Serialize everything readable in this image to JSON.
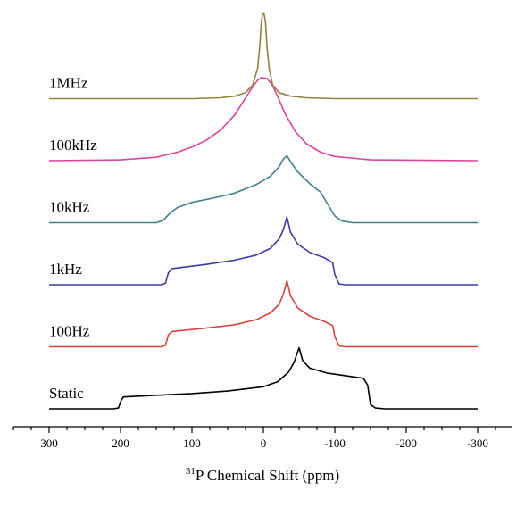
{
  "chart_data": {
    "type": "line",
    "title": "",
    "xlabel": {
      "superscript": "31",
      "text": "P Chemical Shift (ppm)"
    },
    "ylabel": "",
    "xlim": [
      300,
      -300
    ],
    "reversed_x": true,
    "grid": false,
    "legend": "none",
    "x_ticks": [
      300,
      200,
      100,
      0,
      -100,
      -200,
      -300
    ],
    "x_tick_labels": [
      "300",
      "200",
      "100",
      "0",
      "-100",
      "-200",
      "-300"
    ],
    "series": [
      {
        "name": "Static",
        "color": "#000000",
        "offset": 0,
        "points": [
          [
            300,
            0
          ],
          [
            210,
            0
          ],
          [
            203,
            0.01
          ],
          [
            199,
            0.1
          ],
          [
            196,
            0.14
          ],
          [
            150,
            0.16
          ],
          [
            100,
            0.18
          ],
          [
            50,
            0.21
          ],
          [
            0,
            0.26
          ],
          [
            -20,
            0.32
          ],
          [
            -35,
            0.43
          ],
          [
            -43,
            0.55
          ],
          [
            -50,
            0.72
          ],
          [
            -55,
            0.57
          ],
          [
            -65,
            0.48
          ],
          [
            -90,
            0.42
          ],
          [
            -115,
            0.39
          ],
          [
            -140,
            0.36
          ],
          [
            -146,
            0.28
          ],
          [
            -150,
            0.05
          ],
          [
            -157,
            0.01
          ],
          [
            -170,
            0
          ],
          [
            -300,
            0
          ]
        ]
      },
      {
        "name": "100Hz",
        "color": "#d9433a",
        "offset": 1,
        "points": [
          [
            300,
            0
          ],
          [
            142,
            0
          ],
          [
            137,
            0.02
          ],
          [
            133,
            0.14
          ],
          [
            128,
            0.18
          ],
          [
            80,
            0.22
          ],
          [
            40,
            0.26
          ],
          [
            10,
            0.32
          ],
          [
            -10,
            0.4
          ],
          [
            -22,
            0.5
          ],
          [
            -28,
            0.62
          ],
          [
            -33,
            0.78
          ],
          [
            -38,
            0.6
          ],
          [
            -48,
            0.46
          ],
          [
            -65,
            0.36
          ],
          [
            -85,
            0.3
          ],
          [
            -97,
            0.25
          ],
          [
            -100,
            0.12
          ],
          [
            -106,
            0.01
          ],
          [
            -115,
            0
          ],
          [
            -300,
            0
          ]
        ]
      },
      {
        "name": "1kHz",
        "color": "#3b3da3",
        "offset": 2,
        "points": [
          [
            300,
            0
          ],
          [
            142,
            0
          ],
          [
            137,
            0.02
          ],
          [
            133,
            0.14
          ],
          [
            128,
            0.19
          ],
          [
            80,
            0.24
          ],
          [
            40,
            0.29
          ],
          [
            10,
            0.35
          ],
          [
            -10,
            0.43
          ],
          [
            -22,
            0.54
          ],
          [
            -28,
            0.65
          ],
          [
            -33,
            0.8
          ],
          [
            -38,
            0.62
          ],
          [
            -48,
            0.48
          ],
          [
            -65,
            0.38
          ],
          [
            -85,
            0.32
          ],
          [
            -97,
            0.26
          ],
          [
            -100,
            0.12
          ],
          [
            -106,
            0.01
          ],
          [
            -115,
            0
          ],
          [
            -300,
            0
          ]
        ]
      },
      {
        "name": "10kHz",
        "color": "#3e7f8c",
        "offset": 3,
        "points": [
          [
            300,
            0
          ],
          [
            150,
            0
          ],
          [
            140,
            0.03
          ],
          [
            130,
            0.12
          ],
          [
            120,
            0.18
          ],
          [
            100,
            0.24
          ],
          [
            70,
            0.29
          ],
          [
            40,
            0.35
          ],
          [
            10,
            0.45
          ],
          [
            -10,
            0.55
          ],
          [
            -22,
            0.66
          ],
          [
            -28,
            0.75
          ],
          [
            -33,
            0.79
          ],
          [
            -38,
            0.72
          ],
          [
            -48,
            0.6
          ],
          [
            -65,
            0.46
          ],
          [
            -80,
            0.36
          ],
          [
            -90,
            0.22
          ],
          [
            -100,
            0.08
          ],
          [
            -110,
            0.02
          ],
          [
            -125,
            0
          ],
          [
            -300,
            0
          ]
        ]
      },
      {
        "name": "100kHz",
        "color": "#d9449f",
        "offset": 4,
        "points": [
          [
            300,
            0
          ],
          [
            200,
            0.01
          ],
          [
            150,
            0.04
          ],
          [
            120,
            0.1
          ],
          [
            100,
            0.16
          ],
          [
            80,
            0.24
          ],
          [
            60,
            0.36
          ],
          [
            40,
            0.54
          ],
          [
            25,
            0.74
          ],
          [
            15,
            0.87
          ],
          [
            8,
            0.95
          ],
          [
            3,
            0.98
          ],
          [
            -5,
            0.97
          ],
          [
            -12,
            0.9
          ],
          [
            -20,
            0.76
          ],
          [
            -30,
            0.56
          ],
          [
            -45,
            0.34
          ],
          [
            -60,
            0.2
          ],
          [
            -80,
            0.1
          ],
          [
            -100,
            0.05
          ],
          [
            -150,
            0.01
          ],
          [
            -300,
            0
          ]
        ]
      },
      {
        "name": "1MHz",
        "color": "#908240",
        "offset": 5,
        "points": [
          [
            300,
            0
          ],
          [
            100,
            0
          ],
          [
            60,
            0.01
          ],
          [
            40,
            0.03
          ],
          [
            25,
            0.07
          ],
          [
            15,
            0.16
          ],
          [
            8,
            0.36
          ],
          [
            5,
            0.62
          ],
          [
            3,
            0.9
          ],
          [
            1,
            1.0
          ],
          [
            -1,
            1.0
          ],
          [
            -3,
            0.9
          ],
          [
            -5,
            0.62
          ],
          [
            -8,
            0.36
          ],
          [
            -13,
            0.16
          ],
          [
            -22,
            0.07
          ],
          [
            -38,
            0.03
          ],
          [
            -60,
            0.01
          ],
          [
            -100,
            0
          ],
          [
            -300,
            0
          ]
        ]
      }
    ]
  }
}
